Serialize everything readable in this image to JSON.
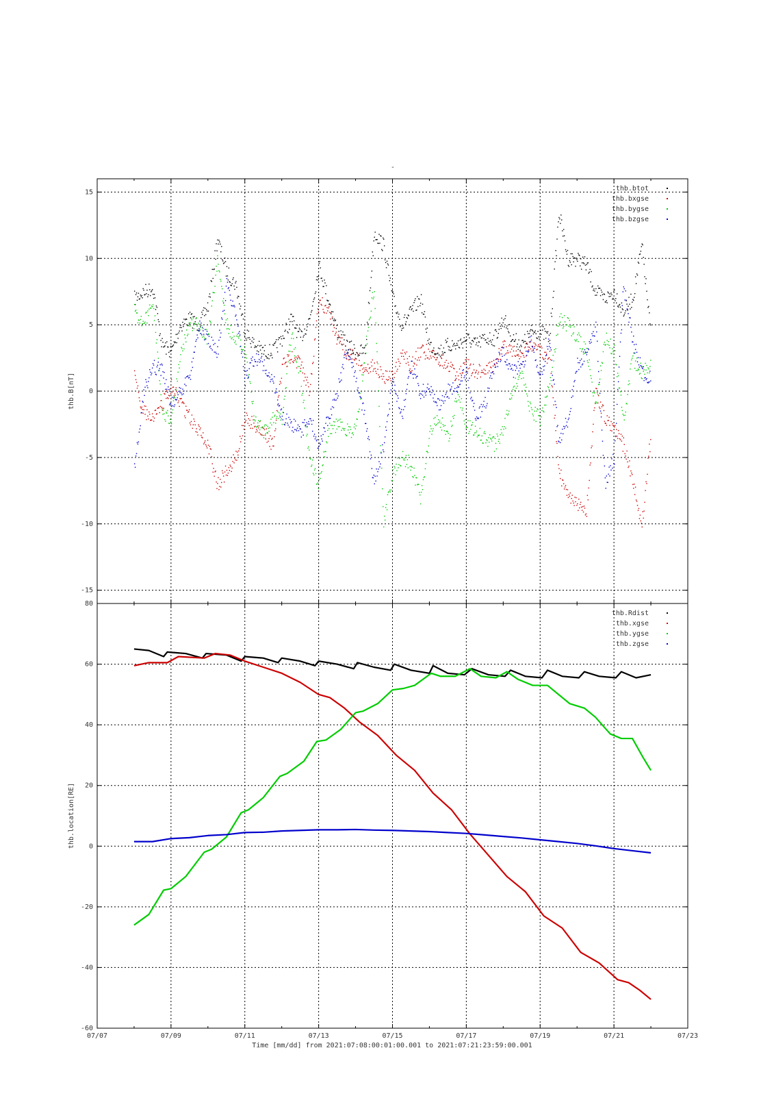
{
  "top_mark": "-",
  "x_axis": {
    "ticks": [
      "07/07",
      "07/09",
      "07/11",
      "07/13",
      "07/15",
      "07/17",
      "07/19",
      "07/21",
      "07/23"
    ],
    "label": "Time [mm/dd]  from 2021:07:08:00:01:00.001  to  2021:07:21:23:59:00.001"
  },
  "colors": {
    "black": "#000000",
    "red": "#cc0000",
    "green": "#00cc00",
    "blue": "#0000cc"
  },
  "chart_data": [
    {
      "type": "scatter",
      "id": "magnetic-field",
      "ylabel": "thb.B[nT]",
      "ylim": [
        -16,
        16
      ],
      "yticks": [
        "15",
        "10",
        "5",
        "0",
        "-5",
        "-10",
        "-15"
      ],
      "xlim": [
        "07/07",
        "07/23"
      ],
      "grid": true,
      "legend_position": "top-right",
      "series": [
        {
          "name": "thb.btot",
          "color": "#000000",
          "x": [
            8.0,
            8.25,
            8.5,
            8.75,
            9.0,
            9.25,
            9.5,
            9.75,
            10.0,
            10.25,
            10.5,
            10.75,
            11.0,
            11.25,
            11.5,
            11.75,
            12.0,
            12.25,
            12.5,
            12.75,
            13.0,
            13.25,
            13.5,
            13.75,
            14.0,
            14.25,
            14.5,
            14.75,
            15.0,
            15.25,
            15.5,
            15.75,
            16.0,
            16.25,
            16.5,
            16.75,
            17.0,
            17.25,
            17.5,
            17.75,
            18.0,
            18.25,
            18.5,
            18.75,
            19.0,
            19.25,
            19.5,
            19.75,
            20.0,
            20.25,
            20.5,
            20.75,
            21.0,
            21.25,
            21.5,
            21.75,
            22.0
          ],
          "y": [
            7.0,
            7.5,
            7.8,
            3.5,
            3.0,
            5.0,
            5.5,
            5.0,
            6.5,
            11.5,
            9.0,
            8.0,
            4.5,
            3.5,
            3.0,
            3.0,
            4.0,
            5.5,
            4.0,
            5.5,
            9.5,
            7.0,
            4.5,
            3.5,
            3.0,
            3.0,
            12.0,
            11.0,
            7.0,
            5.0,
            6.0,
            7.0,
            3.5,
            3.0,
            3.5,
            3.5,
            4.0,
            3.5,
            4.0,
            4.0,
            5.5,
            4.0,
            3.5,
            4.5,
            4.5,
            4.0,
            13.5,
            10.0,
            10.0,
            9.5,
            7.5,
            7.0,
            7.5,
            6.0,
            7.0,
            11.0,
            4.0
          ]
        },
        {
          "name": "thb.bxgse",
          "color": "#cc0000",
          "x": [
            8.0,
            8.25,
            8.5,
            8.75,
            9.0,
            9.25,
            9.5,
            9.75,
            10.0,
            10.25,
            10.5,
            10.75,
            11.0,
            11.25,
            11.5,
            11.75,
            12.0,
            12.25,
            12.5,
            12.75,
            13.0,
            13.25,
            13.5,
            13.75,
            14.0,
            14.25,
            14.5,
            14.75,
            15.0,
            15.25,
            15.5,
            15.75,
            16.0,
            16.25,
            16.5,
            16.75,
            17.0,
            17.25,
            17.5,
            17.75,
            18.0,
            18.25,
            18.5,
            18.75,
            19.0,
            19.25,
            19.5,
            19.75,
            20.0,
            20.25,
            20.5,
            20.75,
            21.0,
            21.25,
            21.5,
            21.75,
            22.0
          ],
          "y": [
            1.0,
            -1.5,
            -2.0,
            -1.0,
            0.5,
            -1.0,
            -2.0,
            -3.0,
            -4.0,
            -7.0,
            -6.0,
            -5.0,
            -2.0,
            -2.5,
            -3.0,
            -4.0,
            2.0,
            2.5,
            2.0,
            0.0,
            7.0,
            6.0,
            4.0,
            3.0,
            2.5,
            1.5,
            2.0,
            1.0,
            1.0,
            3.0,
            2.0,
            3.0,
            3.0,
            2.5,
            2.0,
            1.0,
            2.0,
            1.5,
            1.5,
            2.0,
            3.5,
            3.0,
            3.0,
            3.5,
            3.0,
            2.5,
            -6.0,
            -8.0,
            -8.5,
            -9.0,
            0.0,
            -2.0,
            -3.0,
            -4.0,
            -6.5,
            -10.0,
            -3.0
          ]
        },
        {
          "name": "thb.bygse",
          "color": "#00cc00",
          "x": [
            8.0,
            8.25,
            8.5,
            8.75,
            9.0,
            9.25,
            9.5,
            9.75,
            10.0,
            10.25,
            10.5,
            10.75,
            11.0,
            11.25,
            11.5,
            11.75,
            12.0,
            12.25,
            12.5,
            12.75,
            13.0,
            13.25,
            13.5,
            13.75,
            14.0,
            14.25,
            14.5,
            14.75,
            15.0,
            15.25,
            15.5,
            15.75,
            16.0,
            16.25,
            16.5,
            16.75,
            17.0,
            17.25,
            17.5,
            17.75,
            18.0,
            18.25,
            18.5,
            18.75,
            19.0,
            19.25,
            19.5,
            19.75,
            20.0,
            20.25,
            20.5,
            20.75,
            21.0,
            21.25,
            21.5,
            21.75,
            22.0
          ],
          "y": [
            6.0,
            5.0,
            7.0,
            -1.5,
            -2.0,
            3.0,
            5.0,
            5.0,
            4.0,
            10.0,
            5.0,
            4.0,
            3.0,
            -2.0,
            -3.0,
            -2.0,
            -2.0,
            4.5,
            1.0,
            -5.0,
            -7.0,
            -3.0,
            -2.5,
            -3.0,
            -3.0,
            3.0,
            8.0,
            -10.0,
            -6.0,
            -5.0,
            -5.5,
            -8.0,
            -3.0,
            -2.0,
            -3.5,
            0.0,
            -2.5,
            -3.0,
            -3.5,
            -4.0,
            -3.0,
            0.5,
            1.0,
            -1.5,
            -2.0,
            0.5,
            5.5,
            5.0,
            4.0,
            3.0,
            -1.0,
            4.0,
            3.0,
            -2.0,
            2.5,
            1.5,
            2.0
          ]
        },
        {
          "name": "thb.bzgse",
          "color": "#0000cc",
          "x": [
            8.0,
            8.25,
            8.5,
            8.75,
            9.0,
            9.25,
            9.5,
            9.75,
            10.0,
            10.25,
            10.5,
            10.75,
            11.0,
            11.25,
            11.5,
            11.75,
            12.0,
            12.25,
            12.5,
            12.75,
            13.0,
            13.25,
            13.5,
            13.75,
            14.0,
            14.25,
            14.5,
            14.75,
            15.0,
            15.25,
            15.5,
            15.75,
            16.0,
            16.25,
            16.5,
            16.75,
            17.0,
            17.25,
            17.5,
            17.75,
            18.0,
            18.25,
            18.5,
            18.75,
            19.0,
            19.25,
            19.5,
            19.75,
            20.0,
            20.25,
            20.5,
            20.75,
            21.0,
            21.25,
            21.5,
            21.75,
            22.0
          ],
          "y": [
            -6.0,
            0.0,
            2.0,
            1.5,
            -1.0,
            0.0,
            1.0,
            5.0,
            4.0,
            3.0,
            8.0,
            6.0,
            1.0,
            2.5,
            2.0,
            1.0,
            -2.0,
            -2.5,
            -3.0,
            -2.0,
            -4.0,
            -2.0,
            0.0,
            3.0,
            1.0,
            -2.0,
            -7.0,
            -4.0,
            1.0,
            -2.0,
            2.0,
            0.0,
            0.0,
            -1.0,
            0.0,
            0.5,
            1.5,
            -2.0,
            -1.0,
            2.0,
            3.0,
            1.5,
            2.0,
            4.0,
            1.0,
            4.0,
            -4.0,
            -2.0,
            2.0,
            3.0,
            5.0,
            -7.0,
            -5.0,
            8.0,
            4.0,
            1.5,
            1.0
          ]
        }
      ]
    },
    {
      "type": "line",
      "id": "location",
      "ylabel": "thb.location[RE]",
      "ylim": [
        -60,
        80
      ],
      "yticks": [
        "80",
        "60",
        "40",
        "20",
        "0",
        "-20",
        "-40",
        "-60"
      ],
      "xlim": [
        "07/07",
        "07/23"
      ],
      "grid": true,
      "legend_position": "top-right",
      "series": [
        {
          "name": "thb.Rdist",
          "color": "#000000",
          "x": [
            8.0,
            8.4,
            8.8,
            8.9,
            9.4,
            9.85,
            9.95,
            10.5,
            10.9,
            11.0,
            11.5,
            11.9,
            12.0,
            12.5,
            12.9,
            13.0,
            13.5,
            13.95,
            14.05,
            14.5,
            14.95,
            15.05,
            15.5,
            16.0,
            16.1,
            16.5,
            16.95,
            17.15,
            17.6,
            18.05,
            18.2,
            18.6,
            19.05,
            19.2,
            19.6,
            20.05,
            20.2,
            20.6,
            21.05,
            21.2,
            21.6,
            22.0
          ],
          "y": [
            65.0,
            64.5,
            62.5,
            64.0,
            63.5,
            62.0,
            63.5,
            63.0,
            61.0,
            62.5,
            62.0,
            60.5,
            62.0,
            61.0,
            59.5,
            61.0,
            60.0,
            58.5,
            60.5,
            59.0,
            58.0,
            60.0,
            58.0,
            57.0,
            59.5,
            57.0,
            56.5,
            58.5,
            56.5,
            56.0,
            58.0,
            56.0,
            55.5,
            58.0,
            56.0,
            55.5,
            57.5,
            56.0,
            55.5,
            57.5,
            55.5,
            56.5
          ]
        },
        {
          "name": "thb.xgse",
          "color": "#cc0000",
          "x": [
            8.0,
            8.4,
            8.9,
            9.2,
            9.9,
            10.2,
            10.6,
            11.0,
            11.5,
            12.0,
            12.5,
            13.0,
            13.3,
            13.7,
            14.1,
            14.6,
            15.1,
            15.6,
            16.1,
            16.6,
            17.1,
            17.6,
            18.1,
            18.6,
            19.1,
            19.6,
            20.1,
            20.6,
            21.1,
            21.4,
            21.7,
            22.0
          ],
          "y": [
            59.5,
            60.5,
            60.5,
            62.5,
            62.0,
            63.5,
            63.0,
            61.0,
            59.0,
            57.0,
            54.0,
            50.0,
            49.0,
            45.5,
            41.0,
            36.5,
            30.0,
            25.0,
            17.5,
            12.0,
            4.0,
            -3.0,
            -10.0,
            -15.0,
            -23.0,
            -27.0,
            -35.0,
            -38.5,
            -44.0,
            -45.0,
            -47.5,
            -50.5
          ]
        },
        {
          "name": "thb.ygse",
          "color": "#00cc00",
          "x": [
            8.0,
            8.4,
            8.8,
            9.0,
            9.4,
            9.9,
            10.1,
            10.5,
            10.9,
            11.1,
            11.5,
            11.95,
            12.15,
            12.6,
            12.95,
            13.2,
            13.6,
            14.0,
            14.2,
            14.6,
            15.0,
            15.3,
            15.6,
            16.05,
            16.3,
            16.7,
            17.1,
            17.4,
            17.8,
            18.1,
            18.4,
            18.8,
            19.2,
            19.5,
            19.8,
            20.2,
            20.5,
            20.9,
            21.2,
            21.5,
            21.8,
            22.0
          ],
          "y": [
            -26.0,
            -22.5,
            -14.5,
            -14.0,
            -10.0,
            -2.0,
            -1.0,
            3.0,
            11.0,
            12.0,
            16.0,
            23.0,
            24.0,
            28.0,
            34.5,
            35.0,
            38.5,
            44.0,
            44.5,
            47.0,
            51.5,
            52.0,
            53.0,
            57.0,
            56.0,
            56.0,
            58.5,
            56.0,
            55.5,
            57.5,
            55.0,
            53.0,
            53.0,
            50.0,
            47.0,
            45.5,
            42.5,
            37.0,
            35.5,
            35.5,
            29.0,
            25.0
          ]
        },
        {
          "name": "thb.zgse",
          "color": "#0000cc",
          "x": [
            8.0,
            8.5,
            9.0,
            9.5,
            10.0,
            10.5,
            11.0,
            11.5,
            12.0,
            12.5,
            13.0,
            13.5,
            14.0,
            14.5,
            15.0,
            15.5,
            16.0,
            16.5,
            17.0,
            17.5,
            18.0,
            18.5,
            19.0,
            19.5,
            20.0,
            20.5,
            21.0,
            21.5,
            22.0
          ],
          "y": [
            1.5,
            1.5,
            2.5,
            2.8,
            3.5,
            3.8,
            4.5,
            4.6,
            5.0,
            5.2,
            5.4,
            5.4,
            5.5,
            5.3,
            5.2,
            5.0,
            4.8,
            4.5,
            4.2,
            3.7,
            3.2,
            2.7,
            2.1,
            1.5,
            0.9,
            0.1,
            -0.8,
            -1.5,
            -2.2
          ]
        }
      ]
    }
  ]
}
